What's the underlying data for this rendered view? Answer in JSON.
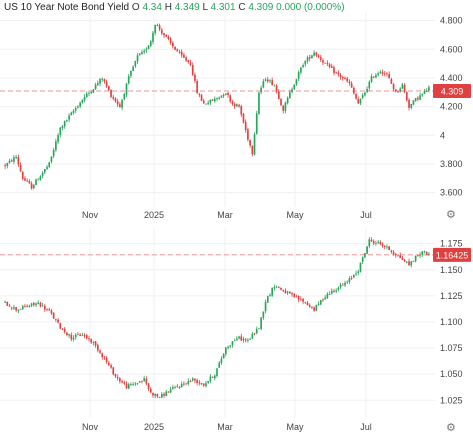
{
  "header": {
    "symbol": "US 10 Year Note Bond Yield",
    "open_label": "O",
    "open": "4.34",
    "high_label": "H",
    "high": "4.349",
    "low_label": "L",
    "low": "4.301",
    "close_label": "C",
    "close": "4.309",
    "change": "0.000 (0.000%)"
  },
  "colors": {
    "up": "#26a65b",
    "down": "#e04040",
    "price_line": "#e05050",
    "badge": "#e04040",
    "grid": "#f0f0f0",
    "axis_text": "#444444"
  },
  "icons": {
    "top_settings": "gear-icon",
    "bottom_settings": "gear-icon"
  },
  "chart_data": [
    {
      "type": "candlestick",
      "title": "US 10 Year Note Bond Yield",
      "x_tick_labels": [
        "Nov",
        "2025",
        "Mar",
        "May",
        "Jul"
      ],
      "y_tick_labels": [
        "3.600",
        "3.800",
        "4",
        "4.200",
        "4.400",
        "4.600",
        "4.800"
      ],
      "y_ticks": [
        3.6,
        3.8,
        4.0,
        4.2,
        4.4,
        4.6,
        4.8
      ],
      "ylim": [
        3.5,
        4.86
      ],
      "last_value": 4.309,
      "last_value_label": "4.309",
      "grid": true,
      "price_line": true,
      "anchors": [
        [
          0,
          3.79
        ],
        [
          5,
          3.85
        ],
        [
          8,
          3.7
        ],
        [
          12,
          3.64
        ],
        [
          15,
          3.7
        ],
        [
          20,
          3.8
        ],
        [
          25,
          4.05
        ],
        [
          30,
          4.15
        ],
        [
          35,
          4.25
        ],
        [
          40,
          4.33
        ],
        [
          44,
          4.4
        ],
        [
          48,
          4.28
        ],
        [
          52,
          4.2
        ],
        [
          56,
          4.4
        ],
        [
          60,
          4.55
        ],
        [
          63,
          4.58
        ],
        [
          66,
          4.66
        ],
        [
          68,
          4.78
        ],
        [
          72,
          4.7
        ],
        [
          76,
          4.62
        ],
        [
          80,
          4.55
        ],
        [
          84,
          4.5
        ],
        [
          87,
          4.3
        ],
        [
          90,
          4.22
        ],
        [
          95,
          4.25
        ],
        [
          100,
          4.3
        ],
        [
          103,
          4.22
        ],
        [
          106,
          4.2
        ],
        [
          110,
          3.98
        ],
        [
          112,
          3.88
        ],
        [
          115,
          4.3
        ],
        [
          118,
          4.4
        ],
        [
          122,
          4.35
        ],
        [
          126,
          4.18
        ],
        [
          130,
          4.33
        ],
        [
          135,
          4.5
        ],
        [
          140,
          4.58
        ],
        [
          145,
          4.5
        ],
        [
          150,
          4.43
        ],
        [
          153,
          4.4
        ],
        [
          156,
          4.36
        ],
        [
          160,
          4.22
        ],
        [
          163,
          4.3
        ],
        [
          166,
          4.4
        ],
        [
          170,
          4.45
        ],
        [
          173,
          4.42
        ],
        [
          177,
          4.3
        ],
        [
          180,
          4.35
        ],
        [
          183,
          4.2
        ],
        [
          186,
          4.25
        ],
        [
          190,
          4.3
        ],
        [
          192,
          4.33
        ]
      ]
    },
    {
      "type": "candlestick",
      "x_tick_labels": [
        "Nov",
        "2025",
        "Mar",
        "May",
        "Jul"
      ],
      "y_tick_labels": [
        "1.025",
        "1.050",
        "1.075",
        "1.100",
        "1.125",
        "1.150",
        "1.175"
      ],
      "y_ticks": [
        1.025,
        1.05,
        1.075,
        1.1,
        1.125,
        1.15,
        1.175
      ],
      "ylim": [
        1.008,
        1.19
      ],
      "last_value": 1.16425,
      "last_value_label": "1.16425",
      "grid": true,
      "price_line": true,
      "anchors": [
        [
          0,
          1.118
        ],
        [
          5,
          1.112
        ],
        [
          10,
          1.115
        ],
        [
          15,
          1.118
        ],
        [
          20,
          1.11
        ],
        [
          25,
          1.095
        ],
        [
          30,
          1.085
        ],
        [
          35,
          1.088
        ],
        [
          40,
          1.08
        ],
        [
          45,
          1.065
        ],
        [
          50,
          1.048
        ],
        [
          55,
          1.038
        ],
        [
          60,
          1.042
        ],
        [
          63,
          1.045
        ],
        [
          66,
          1.032
        ],
        [
          70,
          1.028
        ],
        [
          75,
          1.035
        ],
        [
          80,
          1.04
        ],
        [
          85,
          1.045
        ],
        [
          90,
          1.04
        ],
        [
          95,
          1.05
        ],
        [
          100,
          1.075
        ],
        [
          105,
          1.085
        ],
        [
          110,
          1.082
        ],
        [
          115,
          1.095
        ],
        [
          118,
          1.12
        ],
        [
          122,
          1.135
        ],
        [
          126,
          1.13
        ],
        [
          130,
          1.125
        ],
        [
          135,
          1.12
        ],
        [
          140,
          1.112
        ],
        [
          145,
          1.125
        ],
        [
          150,
          1.132
        ],
        [
          155,
          1.138
        ],
        [
          160,
          1.15
        ],
        [
          165,
          1.178
        ],
        [
          170,
          1.175
        ],
        [
          175,
          1.168
        ],
        [
          180,
          1.16
        ],
        [
          183,
          1.155
        ],
        [
          186,
          1.162
        ],
        [
          190,
          1.168
        ],
        [
          192,
          1.164
        ]
      ]
    }
  ]
}
